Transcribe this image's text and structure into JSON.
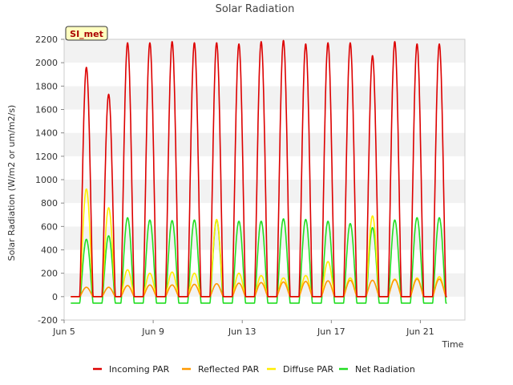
{
  "chart_data": {
    "type": "line",
    "title": "Solar Radiation",
    "xlabel": "Time",
    "ylabel": "Solar Radiation (W/m2 or um/m2/s)",
    "ylim": [
      -200,
      2200
    ],
    "yticks": [
      -200,
      0,
      200,
      400,
      600,
      800,
      1000,
      1200,
      1400,
      1600,
      1800,
      2000,
      2200
    ],
    "x_start": "Jun 5",
    "xlim_days": [
      5,
      23
    ],
    "xticks": [
      {
        "day": 5,
        "label": "Jun 5"
      },
      {
        "day": 9,
        "label": "Jun 9"
      },
      {
        "day": 13,
        "label": "Jun 13"
      },
      {
        "day": 17,
        "label": "Jun 17"
      },
      {
        "day": 21,
        "label": "Jun 21"
      }
    ],
    "station_label": "SI_met",
    "legend_position": "bottom",
    "grid": "horizontal-bands",
    "series": [
      {
        "name": "Incoming PAR",
        "color": "#dd0000",
        "daily_peak": [
          1960,
          1730,
          2170,
          2170,
          2180,
          2170,
          2170,
          2160,
          2180,
          2190,
          2160,
          2170,
          2170,
          2060,
          2180,
          2160,
          2160
        ]
      },
      {
        "name": "Reflected PAR",
        "color": "#ff9900",
        "daily_peak": [
          80,
          80,
          95,
          100,
          100,
          105,
          110,
          115,
          120,
          125,
          130,
          135,
          140,
          140,
          145,
          150,
          150
        ]
      },
      {
        "name": "Diffuse PAR",
        "color": "#ffee00",
        "daily_peak": [
          920,
          760,
          230,
          200,
          210,
          200,
          660,
          200,
          180,
          160,
          180,
          300,
          160,
          690,
          150,
          160,
          170
        ]
      },
      {
        "name": "Net Radiation",
        "color": "#22dd22",
        "daily_peak": [
          490,
          520,
          675,
          655,
          650,
          655,
          655,
          645,
          645,
          665,
          660,
          645,
          625,
          590,
          655,
          675,
          675
        ],
        "night_value": -55
      }
    ],
    "day_centers": [
      6.0,
      7.0,
      7.85,
      8.85,
      9.85,
      10.85,
      11.85,
      12.85,
      13.85,
      14.85,
      15.85,
      16.85,
      17.85,
      18.85,
      19.85,
      20.85,
      21.85
    ]
  }
}
